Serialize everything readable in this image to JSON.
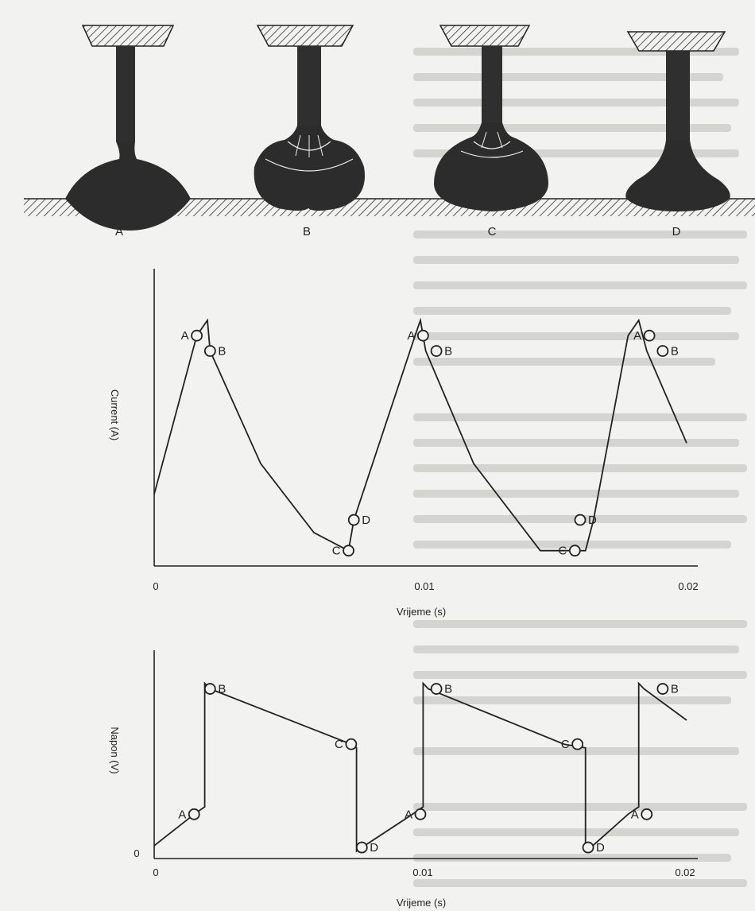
{
  "stages": [
    "A",
    "B",
    "C",
    "D"
  ],
  "current_chart": {
    "ylabel": "Current (A)",
    "xlabel": "Vrijeme (s)",
    "x_ticks": [
      "0",
      "0.01",
      "0.02"
    ],
    "point_labels": [
      "A",
      "B",
      "C",
      "D"
    ]
  },
  "voltage_chart": {
    "ylabel": "Napon (V)",
    "xlabel": "Vrijeme (s)",
    "x_ticks": [
      "0",
      "0.01",
      "0.02"
    ],
    "y_origin": "0",
    "point_labels": [
      "A",
      "B",
      "C",
      "D"
    ]
  },
  "chart_data": [
    {
      "type": "line",
      "title": "",
      "xlabel": "Vrijeme (s)",
      "ylabel": "Current (A)",
      "xlim": [
        0,
        0.02
      ],
      "series": [
        {
          "x": [
            0,
            0.0016,
            0.002,
            0.0021,
            0.004,
            0.006,
            0.0073,
            0.0073,
            0.0075,
            0.0098,
            0.01,
            0.0102,
            0.012,
            0.0145,
            0.0162,
            0.0162,
            0.0165,
            0.0178,
            0.0182,
            0.0185,
            0.02
          ],
          "y": [
            0.28,
            0.9,
            0.96,
            0.84,
            0.4,
            0.13,
            0.06,
            0.06,
            0.18,
            0.9,
            0.96,
            0.84,
            0.4,
            0.06,
            0.06,
            0.06,
            0.18,
            0.9,
            0.96,
            0.84,
            0.48
          ]
        }
      ],
      "annotations": [
        {
          "label": "A",
          "x": 0.0016,
          "y": 0.9
        },
        {
          "label": "B",
          "x": 0.0021,
          "y": 0.84
        },
        {
          "label": "C",
          "x": 0.0073,
          "y": 0.06
        },
        {
          "label": "D",
          "x": 0.0075,
          "y": 0.18
        }
      ]
    },
    {
      "type": "line",
      "title": "",
      "xlabel": "Vrijeme (s)",
      "ylabel": "Napon (V)",
      "xlim": [
        0,
        0.02
      ],
      "series": [
        {
          "x": [
            0,
            0.0015,
            0.0019,
            0.0019,
            0.0021,
            0.0074,
            0.0076,
            0.0076,
            0.0078,
            0.0097,
            0.0101,
            0.0101,
            0.0103,
            0.0154,
            0.0162,
            0.0162,
            0.0164,
            0.0178,
            0.0182,
            0.0182,
            0.0184,
            0.02
          ],
          "y": [
            0.07,
            0.24,
            0.28,
            0.95,
            0.92,
            0.62,
            0.6,
            0.04,
            0.06,
            0.24,
            0.28,
            0.95,
            0.92,
            0.62,
            0.6,
            0.04,
            0.06,
            0.24,
            0.28,
            0.95,
            0.92,
            0.75
          ]
        }
      ],
      "annotations": [
        {
          "label": "A",
          "x": 0.0015,
          "y": 0.24
        },
        {
          "label": "B",
          "x": 0.0021,
          "y": 0.92
        },
        {
          "label": "C",
          "x": 0.0074,
          "y": 0.62
        },
        {
          "label": "D",
          "x": 0.0078,
          "y": 0.06
        }
      ]
    }
  ]
}
